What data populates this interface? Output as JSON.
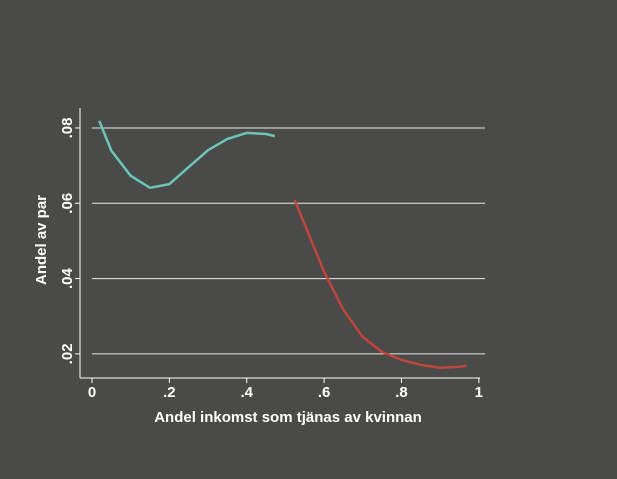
{
  "chart_data": {
    "type": "line",
    "xlabel": "Andel inkomst som tjänas av kvinnan",
    "ylabel": "Andel av par",
    "series": [
      {
        "color": "#6cc5b8",
        "x": [
          0.02,
          0.05,
          0.1,
          0.15,
          0.2,
          0.25,
          0.3,
          0.35,
          0.4,
          0.45,
          0.47
        ],
        "values": [
          0.0816,
          0.074,
          0.0673,
          0.0641,
          0.0651,
          0.0696,
          0.0741,
          0.0771,
          0.0787,
          0.0784,
          0.0779
        ]
      },
      {
        "color": "#c0453c",
        "x": [
          0.525,
          0.6,
          0.65,
          0.7,
          0.75,
          0.8,
          0.85,
          0.9,
          0.95,
          0.966
        ],
        "values": [
          0.0606,
          0.0418,
          0.0317,
          0.0245,
          0.0205,
          0.0184,
          0.0171,
          0.0163,
          0.0166,
          0.0168
        ]
      }
    ],
    "xlim": [
      -0.031,
      1.003
    ],
    "ylim": [
      0.0136,
      0.0853
    ],
    "xticks": [
      0,
      {
        "value": 0.2,
        "label": ".2"
      },
      {
        "value": 0.4,
        "label": ".4"
      },
      {
        "value": 0.6,
        "label": ".6"
      },
      {
        "value": 0.8,
        "label": ".8"
      },
      1
    ],
    "yticks": [
      {
        "value": 0.02,
        "label": ".02"
      },
      {
        "value": 0.04,
        "label": ".04"
      },
      {
        "value": 0.06,
        "label": ".06"
      },
      {
        "value": 0.08,
        "label": ".08"
      }
    ],
    "grid": true
  }
}
